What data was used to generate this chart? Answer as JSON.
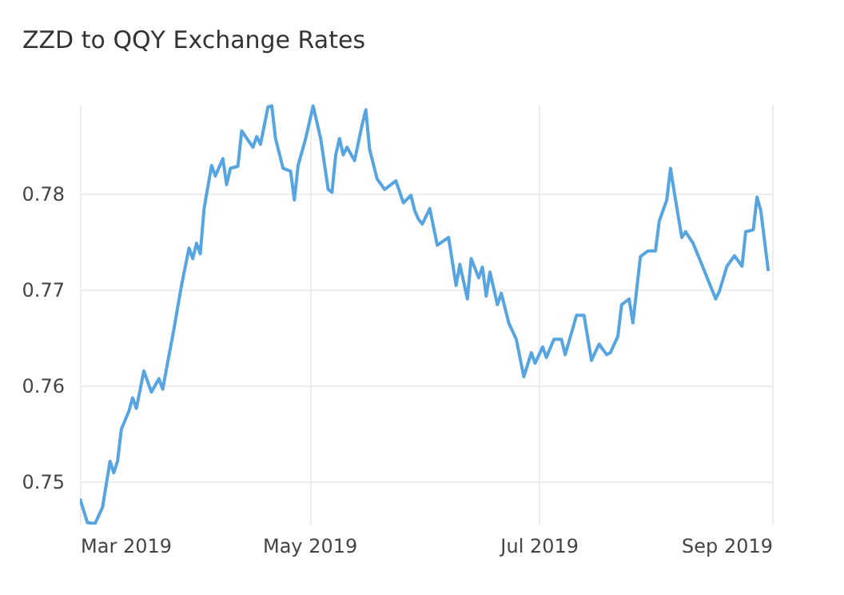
{
  "chart_data": {
    "type": "line",
    "title": "ZZD to QQY Exchange Rates",
    "x": [
      "2019-03-01",
      "2019-03-03",
      "2019-03-05",
      "2019-03-07",
      "2019-03-09",
      "2019-03-10",
      "2019-03-11",
      "2019-03-12",
      "2019-03-14",
      "2019-03-15",
      "2019-03-16",
      "2019-03-18",
      "2019-03-20",
      "2019-03-22",
      "2019-03-23",
      "2019-03-26",
      "2019-03-28",
      "2019-03-30",
      "2019-03-31",
      "2019-04-01",
      "2019-04-02",
      "2019-04-03",
      "2019-04-05",
      "2019-04-06",
      "2019-04-08",
      "2019-04-09",
      "2019-04-10",
      "2019-04-12",
      "2019-04-13",
      "2019-04-16",
      "2019-04-17",
      "2019-04-18",
      "2019-04-20",
      "2019-04-21",
      "2019-04-22",
      "2019-04-24",
      "2019-04-26",
      "2019-04-27",
      "2019-04-28",
      "2019-04-30",
      "2019-05-02",
      "2019-05-04",
      "2019-05-06",
      "2019-05-07",
      "2019-05-08",
      "2019-05-09",
      "2019-05-10",
      "2019-05-11",
      "2019-05-13",
      "2019-05-15",
      "2019-05-16",
      "2019-05-17",
      "2019-05-19",
      "2019-05-21",
      "2019-05-24",
      "2019-05-26",
      "2019-05-28",
      "2019-05-29",
      "2019-05-30",
      "2019-05-31",
      "2019-06-02",
      "2019-06-04",
      "2019-06-07",
      "2019-06-09",
      "2019-06-10",
      "2019-06-12",
      "2019-06-13",
      "2019-06-15",
      "2019-06-16",
      "2019-06-17",
      "2019-06-18",
      "2019-06-20",
      "2019-06-21",
      "2019-06-23",
      "2019-06-25",
      "2019-06-27",
      "2019-06-29",
      "2019-06-30",
      "2019-07-02",
      "2019-07-03",
      "2019-07-05",
      "2019-07-07",
      "2019-07-08",
      "2019-07-10",
      "2019-07-11",
      "2019-07-13",
      "2019-07-15",
      "2019-07-17",
      "2019-07-19",
      "2019-07-20",
      "2019-07-22",
      "2019-07-23",
      "2019-07-25",
      "2019-07-26",
      "2019-07-28",
      "2019-07-30",
      "2019-08-01",
      "2019-08-02",
      "2019-08-04",
      "2019-08-05",
      "2019-08-06",
      "2019-08-08",
      "2019-08-09",
      "2019-08-11",
      "2019-08-13",
      "2019-08-17",
      "2019-08-18",
      "2019-08-20",
      "2019-08-22",
      "2019-08-24",
      "2019-08-25",
      "2019-08-27",
      "2019-08-28",
      "2019-08-29",
      "2019-08-31"
    ],
    "series": [
      {
        "color": "#56a5e0",
        "values": [
          0.7482,
          0.7457,
          0.7456,
          0.7473,
          0.7521,
          0.7509,
          0.7521,
          0.7554,
          0.7573,
          0.7587,
          0.7576,
          0.7615,
          0.7593,
          0.7607,
          0.7596,
          0.7659,
          0.7704,
          0.7743,
          0.7732,
          0.7748,
          0.7737,
          0.7784,
          0.7829,
          0.7818,
          0.7836,
          0.7809,
          0.7826,
          0.7828,
          0.7865,
          0.7848,
          0.7859,
          0.7851,
          0.789,
          0.7891,
          0.7857,
          0.7826,
          0.7823,
          0.7793,
          0.7829,
          0.7857,
          0.7891,
          0.7857,
          0.7804,
          0.7801,
          0.784,
          0.7857,
          0.784,
          0.7848,
          0.7834,
          0.7871,
          0.7887,
          0.7846,
          0.7815,
          0.7804,
          0.7813,
          0.779,
          0.7798,
          0.7782,
          0.7773,
          0.7768,
          0.7784,
          0.7746,
          0.7754,
          0.7704,
          0.7726,
          0.769,
          0.7732,
          0.7712,
          0.7723,
          0.7693,
          0.7718,
          0.7684,
          0.7696,
          0.7665,
          0.7648,
          0.7609,
          0.7634,
          0.7623,
          0.764,
          0.7629,
          0.7648,
          0.7648,
          0.7632,
          0.7659,
          0.7673,
          0.7673,
          0.7626,
          0.7643,
          0.7632,
          0.7634,
          0.7651,
          0.7684,
          0.769,
          0.7665,
          0.7734,
          0.774,
          0.774,
          0.7771,
          0.7793,
          0.7826,
          0.7801,
          0.7754,
          0.776,
          0.7748,
          0.7729,
          0.769,
          0.7698,
          0.7724,
          0.7735,
          0.7724,
          0.776,
          0.7762,
          0.7796,
          0.7782,
          0.7719
        ]
      }
    ],
    "xlim": [
      "2019-03-01",
      "2019-09-01"
    ],
    "xticks": [
      {
        "value": "2019-03-01",
        "label": "Mar 2019"
      },
      {
        "value": "2019-05-01",
        "label": "May 2019"
      },
      {
        "value": "2019-07-01",
        "label": "Jul 2019"
      },
      {
        "value": "2019-09-01",
        "label": "Sep 2019"
      }
    ],
    "ylim": [
      0.7455,
      0.7893
    ],
    "yticks": [
      0.75,
      0.76,
      0.77,
      0.78
    ],
    "grid": true,
    "marker": "none",
    "line_style": "solid"
  }
}
